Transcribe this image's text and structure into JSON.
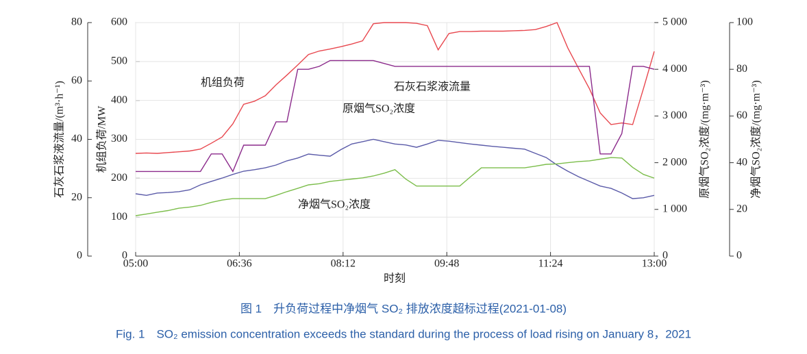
{
  "chart_data": {
    "type": "line",
    "xlabel": "时刻",
    "x": [
      "05:00",
      "05:10",
      "05:20",
      "05:30",
      "05:40",
      "05:50",
      "06:00",
      "06:10",
      "06:20",
      "06:30",
      "06:40",
      "06:50",
      "07:00",
      "07:10",
      "07:20",
      "07:30",
      "07:40",
      "07:50",
      "08:00",
      "08:10",
      "08:20",
      "08:30",
      "08:40",
      "08:50",
      "09:00",
      "09:10",
      "09:20",
      "09:30",
      "09:40",
      "09:50",
      "10:00",
      "10:10",
      "10:20",
      "10:30",
      "10:40",
      "10:50",
      "11:00",
      "11:10",
      "11:20",
      "11:30",
      "11:40",
      "11:50",
      "12:00",
      "12:10",
      "12:20",
      "12:30",
      "12:40",
      "12:50",
      "13:00"
    ],
    "xlim": [
      "05:00",
      "13:00"
    ],
    "xticks": [
      "05:00",
      "06:36",
      "08:12",
      "09:48",
      "11:24",
      "13:00"
    ],
    "grid": true,
    "y_axes": [
      {
        "id": "slurry",
        "label": "石灰石浆液流量/(m³·h⁻¹)",
        "ylim": [
          0,
          80
        ],
        "yticks": [
          0,
          20,
          40,
          60,
          80
        ]
      },
      {
        "id": "load",
        "label": "机组负荷/MW",
        "ylim": [
          0,
          600
        ],
        "yticks": [
          0,
          100,
          200,
          300,
          400,
          500,
          600
        ]
      },
      {
        "id": "raw",
        "label": "原烟气SO₂浓度/(mg·m⁻³)",
        "ylim": [
          0,
          5000
        ],
        "yticks": [
          0,
          {
            "value": 1000,
            "label": "1 000"
          },
          {
            "value": 2000,
            "label": "2 000"
          },
          {
            "value": 3000,
            "label": "3 000"
          },
          {
            "value": 4000,
            "label": "4 000"
          },
          {
            "value": 5000,
            "label": "5 000"
          }
        ]
      },
      {
        "id": "clean",
        "label": "净烟气SO₂浓度/(mg·m⁻³)",
        "ylim": [
          0,
          100
        ],
        "yticks": [
          0,
          20,
          40,
          60,
          80,
          100
        ]
      }
    ],
    "series": [
      {
        "name": "机组负荷",
        "axis": "load",
        "color": "#e8474e",
        "values": [
          264,
          265,
          264,
          266,
          268,
          270,
          275,
          290,
          306,
          340,
          390,
          398,
          412,
          440,
          465,
          491,
          518,
          527,
          532,
          538,
          545,
          553,
          597,
          600,
          600,
          600,
          598,
          592,
          530,
          572,
          577,
          577,
          578,
          578,
          578,
          579,
          580,
          582,
          590,
          600,
          535,
          482,
          430,
          368,
          338,
          342,
          338,
          430,
          526
        ]
      },
      {
        "name": "石灰石浆液流量",
        "axis": "slurry",
        "color": "#8b2a8b",
        "values": [
          29,
          29,
          29,
          29,
          29,
          29,
          29,
          35,
          35,
          29,
          38,
          38,
          38,
          46,
          46,
          64,
          64,
          65,
          67,
          67,
          67,
          67,
          67,
          66,
          65,
          65,
          65,
          65,
          65,
          65,
          65,
          65,
          65,
          65,
          65,
          65,
          65,
          65,
          65,
          65,
          65,
          65,
          65,
          35,
          35,
          42,
          65,
          65,
          64
        ]
      },
      {
        "name": "原烟气SO₂浓度",
        "axis": "raw",
        "color": "#5a5aa8",
        "values": [
          1334,
          1300,
          1350,
          1360,
          1380,
          1420,
          1525,
          1600,
          1670,
          1750,
          1818,
          1850,
          1890,
          1950,
          2040,
          2100,
          2185,
          2160,
          2140,
          2280,
          2400,
          2450,
          2500,
          2450,
          2400,
          2380,
          2330,
          2400,
          2480,
          2460,
          2430,
          2400,
          2375,
          2350,
          2330,
          2310,
          2290,
          2200,
          2110,
          1950,
          1818,
          1700,
          1600,
          1500,
          1450,
          1350,
          1230,
          1250,
          1300
        ]
      },
      {
        "name": "净烟气SO₂浓度",
        "axis": "clean",
        "color": "#7bbd4a",
        "values": [
          17.3,
          18,
          18.8,
          19.5,
          20.5,
          21,
          21.7,
          23,
          24,
          24.6,
          24.6,
          24.6,
          24.6,
          26,
          27.6,
          29,
          30.5,
          31,
          32,
          32.5,
          33,
          33.5,
          34.3,
          35.5,
          37,
          33,
          30,
          30,
          30,
          30,
          30,
          34,
          37.8,
          37.8,
          37.8,
          37.8,
          37.8,
          38.5,
          39.3,
          39.5,
          40,
          40.5,
          40.8,
          41.5,
          42.2,
          42,
          38,
          35,
          33.4
        ]
      }
    ],
    "caption_cn": "图 1　升负荷过程中净烟气 SO₂ 排放浓度超标过程(2021-01-08)",
    "caption_en": "Fig. 1　SO₂ emission concentration exceeds the standard during the process of load rising on January 8，2021"
  }
}
